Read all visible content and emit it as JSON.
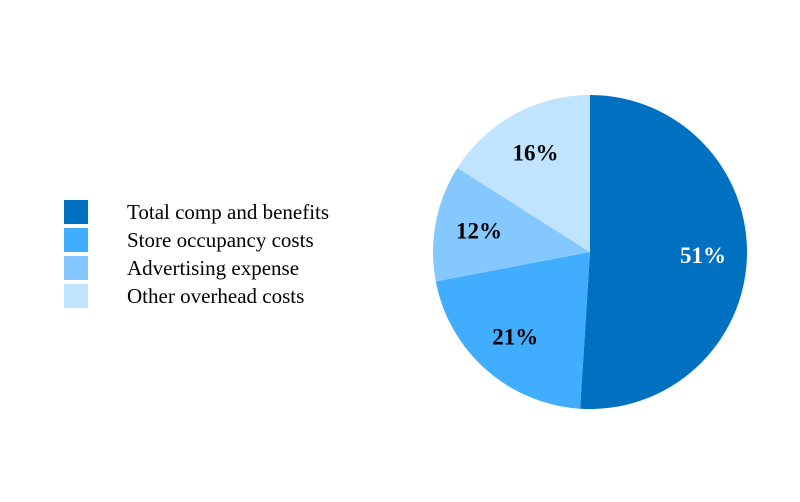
{
  "chart_data": {
    "type": "pie",
    "title": "",
    "legend_position": "left",
    "start_angle": "12 o'clock, clockwise",
    "slices": [
      {
        "label": "Total comp and benefits",
        "value": 51,
        "data_label": "51%",
        "color": "#0070C0",
        "label_color": "#FFFFFF"
      },
      {
        "label": "Store occupancy costs",
        "value": 21,
        "data_label": "21%",
        "color": "#41ADFF",
        "label_color": "#000000"
      },
      {
        "label": "Advertising expense",
        "value": 12,
        "data_label": "12%",
        "color": "#85C8FF",
        "label_color": "#000000"
      },
      {
        "label": "Other overhead costs",
        "value": 16,
        "data_label": "16%",
        "color": "#C0E4FF",
        "label_color": "#000000"
      }
    ]
  }
}
